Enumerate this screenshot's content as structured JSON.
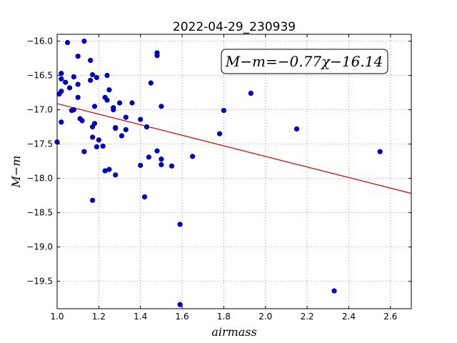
{
  "chart_data": {
    "type": "scatter",
    "title": "2022-04-29_230939",
    "xlabel": "airmass",
    "ylabel": "M−m",
    "xlim": [
      1.0,
      2.7
    ],
    "ylim": [
      -19.9,
      -15.9
    ],
    "y_inverted": false,
    "grid": true,
    "x_ticks": [
      "1.0",
      "1.2",
      "1.4",
      "1.6",
      "1.8",
      "2.0",
      "2.2",
      "2.4",
      "2.6"
    ],
    "y_ticks": [
      "−16.0",
      "−16.5",
      "−17.0",
      "−17.5",
      "−18.0",
      "−18.5",
      "−19.0",
      "−19.5"
    ],
    "annotation": "M−m=−0.77χ−16.14",
    "fit": {
      "slope": -0.77,
      "intercept": -16.14,
      "color": "#cc0000"
    },
    "point_color": "#0000cc",
    "points": [
      [
        1.0,
        -17.47
      ],
      [
        1.01,
        -16.77
      ],
      [
        1.02,
        -16.47
      ],
      [
        1.02,
        -16.73
      ],
      [
        1.02,
        -16.55
      ],
      [
        1.02,
        -17.18
      ],
      [
        1.04,
        -16.6
      ],
      [
        1.05,
        -16.02
      ],
      [
        1.06,
        -16.68
      ],
      [
        1.07,
        -17.01
      ],
      [
        1.08,
        -16.52
      ],
      [
        1.08,
        -17.0
      ],
      [
        1.1,
        -16.63
      ],
      [
        1.1,
        -16.82
      ],
      [
        1.1,
        -16.22
      ],
      [
        1.11,
        -17.13
      ],
      [
        1.12,
        -17.16
      ],
      [
        1.13,
        -16.0
      ],
      [
        1.13,
        -17.61
      ],
      [
        1.16,
        -16.57
      ],
      [
        1.16,
        -16.28
      ],
      [
        1.17,
        -16.49
      ],
      [
        1.17,
        -17.25
      ],
      [
        1.17,
        -17.4
      ],
      [
        1.17,
        -18.32
      ],
      [
        1.18,
        -16.95
      ],
      [
        1.18,
        -17.2
      ],
      [
        1.19,
        -17.54
      ],
      [
        1.19,
        -16.53
      ],
      [
        1.2,
        -17.44
      ],
      [
        1.22,
        -17.53
      ],
      [
        1.23,
        -17.89
      ],
      [
        1.23,
        -16.82
      ],
      [
        1.24,
        -16.86
      ],
      [
        1.24,
        -16.5
      ],
      [
        1.25,
        -16.71
      ],
      [
        1.25,
        -17.87
      ],
      [
        1.27,
        -16.97
      ],
      [
        1.27,
        -17.0
      ],
      [
        1.28,
        -17.26
      ],
      [
        1.28,
        -17.27
      ],
      [
        1.28,
        -17.95
      ],
      [
        1.3,
        -16.9
      ],
      [
        1.31,
        -17.38
      ],
      [
        1.33,
        -17.11
      ],
      [
        1.33,
        -17.29
      ],
      [
        1.36,
        -16.9
      ],
      [
        1.4,
        -17.14
      ],
      [
        1.4,
        -17.81
      ],
      [
        1.42,
        -18.27
      ],
      [
        1.43,
        -17.25
      ],
      [
        1.44,
        -17.69
      ],
      [
        1.45,
        -16.61
      ],
      [
        1.48,
        -17.6
      ],
      [
        1.48,
        -16.17
      ],
      [
        1.48,
        -16.21
      ],
      [
        1.5,
        -16.95
      ],
      [
        1.5,
        -17.72
      ],
      [
        1.5,
        -17.8
      ],
      [
        1.55,
        -17.82
      ],
      [
        1.59,
        -18.67
      ],
      [
        1.59,
        -19.84
      ],
      [
        1.65,
        -17.68
      ],
      [
        1.78,
        -17.35
      ],
      [
        1.8,
        -17.01
      ],
      [
        1.93,
        -16.76
      ],
      [
        2.15,
        -17.28
      ],
      [
        2.33,
        -19.64
      ],
      [
        2.55,
        -17.61
      ]
    ]
  }
}
